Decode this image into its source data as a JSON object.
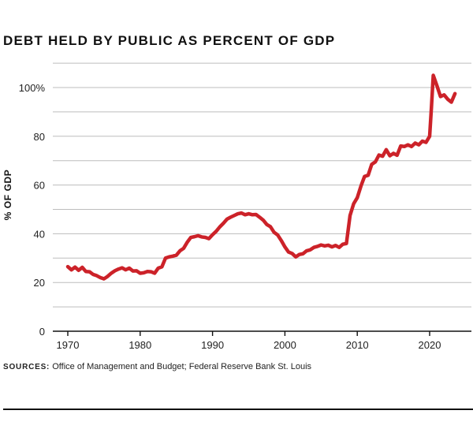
{
  "title": "DEBT HELD BY PUBLIC AS PERCENT OF GDP",
  "sources": {
    "label": "SOURCES:",
    "text": "Office of Management and Budget; Federal Reserve Bank St. Louis"
  },
  "colors": {
    "line": "#cc2229",
    "grid": "#bdbdbd",
    "axis": "#111111"
  },
  "chart_data": {
    "type": "line",
    "title": "DEBT HELD BY PUBLIC AS PERCENT OF GDP",
    "xlabel": "",
    "ylabel": "% OF GDP",
    "xlim": [
      1969,
      2025
    ],
    "ylim": [
      0,
      110
    ],
    "x_ticks": [
      1970,
      1980,
      1990,
      2000,
      2010,
      2020
    ],
    "x_tick_labels": [
      "1970",
      "1980",
      "1990",
      "2000",
      "2010",
      "2020"
    ],
    "y_ticks": [
      0,
      20,
      40,
      60,
      80,
      100
    ],
    "y_tick_labels": [
      "0",
      "20",
      "40",
      "60",
      "80",
      "100%"
    ],
    "y_gridlines": [
      10,
      20,
      30,
      40,
      50,
      60,
      70,
      80,
      90,
      100,
      110
    ],
    "grid": true,
    "series": [
      {
        "color": "#cc2229",
        "x": [
          1970.0,
          1970.5,
          1971.0,
          1971.5,
          1972.0,
          1972.5,
          1973.0,
          1973.5,
          1974.0,
          1974.5,
          1975.0,
          1975.5,
          1976.0,
          1976.5,
          1977.0,
          1977.5,
          1978.0,
          1978.5,
          1979.0,
          1979.5,
          1980.0,
          1980.5,
          1981.0,
          1981.5,
          1982.0,
          1982.5,
          1983.0,
          1983.5,
          1984.0,
          1984.5,
          1985.0,
          1985.5,
          1986.0,
          1986.5,
          1987.0,
          1987.5,
          1988.0,
          1988.5,
          1989.0,
          1989.5,
          1990.0,
          1990.5,
          1991.0,
          1991.5,
          1992.0,
          1992.5,
          1993.0,
          1993.5,
          1994.0,
          1994.5,
          1995.0,
          1995.5,
          1996.0,
          1996.5,
          1997.0,
          1997.5,
          1998.0,
          1998.5,
          1999.0,
          1999.5,
          2000.0,
          2000.5,
          2001.0,
          2001.5,
          2002.0,
          2002.5,
          2003.0,
          2003.5,
          2004.0,
          2004.5,
          2005.0,
          2005.5,
          2006.0,
          2006.5,
          2007.0,
          2007.5,
          2008.0,
          2008.5,
          2009.0,
          2009.5,
          2010.0,
          2010.5,
          2011.0,
          2011.5,
          2012.0,
          2012.5,
          2013.0,
          2013.5,
          2014.0,
          2014.5,
          2015.0,
          2015.5,
          2016.0,
          2016.5,
          2017.0,
          2017.5,
          2018.0,
          2018.5,
          2019.0,
          2019.5,
          2020.0,
          2020.25,
          2020.5,
          2021.0,
          2021.5,
          2022.0,
          2022.5,
          2023.0,
          2023.5
        ],
        "y": [
          26.5,
          25.2,
          26.3,
          25.0,
          26.2,
          24.5,
          24.4,
          23.3,
          22.8,
          22.0,
          21.5,
          22.5,
          23.8,
          24.8,
          25.5,
          26.0,
          25.2,
          25.9,
          24.7,
          24.8,
          23.8,
          24.0,
          24.5,
          24.4,
          23.8,
          25.9,
          26.4,
          30.0,
          30.5,
          30.8,
          31.2,
          33.0,
          34.0,
          36.5,
          38.5,
          38.8,
          39.2,
          38.7,
          38.5,
          38.0,
          39.6,
          41.0,
          42.8,
          44.3,
          46.0,
          46.8,
          47.5,
          48.2,
          48.5,
          47.8,
          48.2,
          47.8,
          47.9,
          46.8,
          45.6,
          43.8,
          42.9,
          40.6,
          39.5,
          37.2,
          34.6,
          32.5,
          31.9,
          30.5,
          31.5,
          31.8,
          33.0,
          33.4,
          34.4,
          34.8,
          35.4,
          35.0,
          35.3,
          34.6,
          35.2,
          34.4,
          35.7,
          36.0,
          47.5,
          52.3,
          54.8,
          59.5,
          63.5,
          64.0,
          68.5,
          69.5,
          72.3,
          71.8,
          74.5,
          72.0,
          73.0,
          72.2,
          76.0,
          75.8,
          76.5,
          75.8,
          77.2,
          76.5,
          78.0,
          77.5,
          80.0,
          92.0,
          105.0,
          100.8,
          96.3,
          97.0,
          95.2,
          94.0,
          97.5
        ]
      }
    ]
  }
}
